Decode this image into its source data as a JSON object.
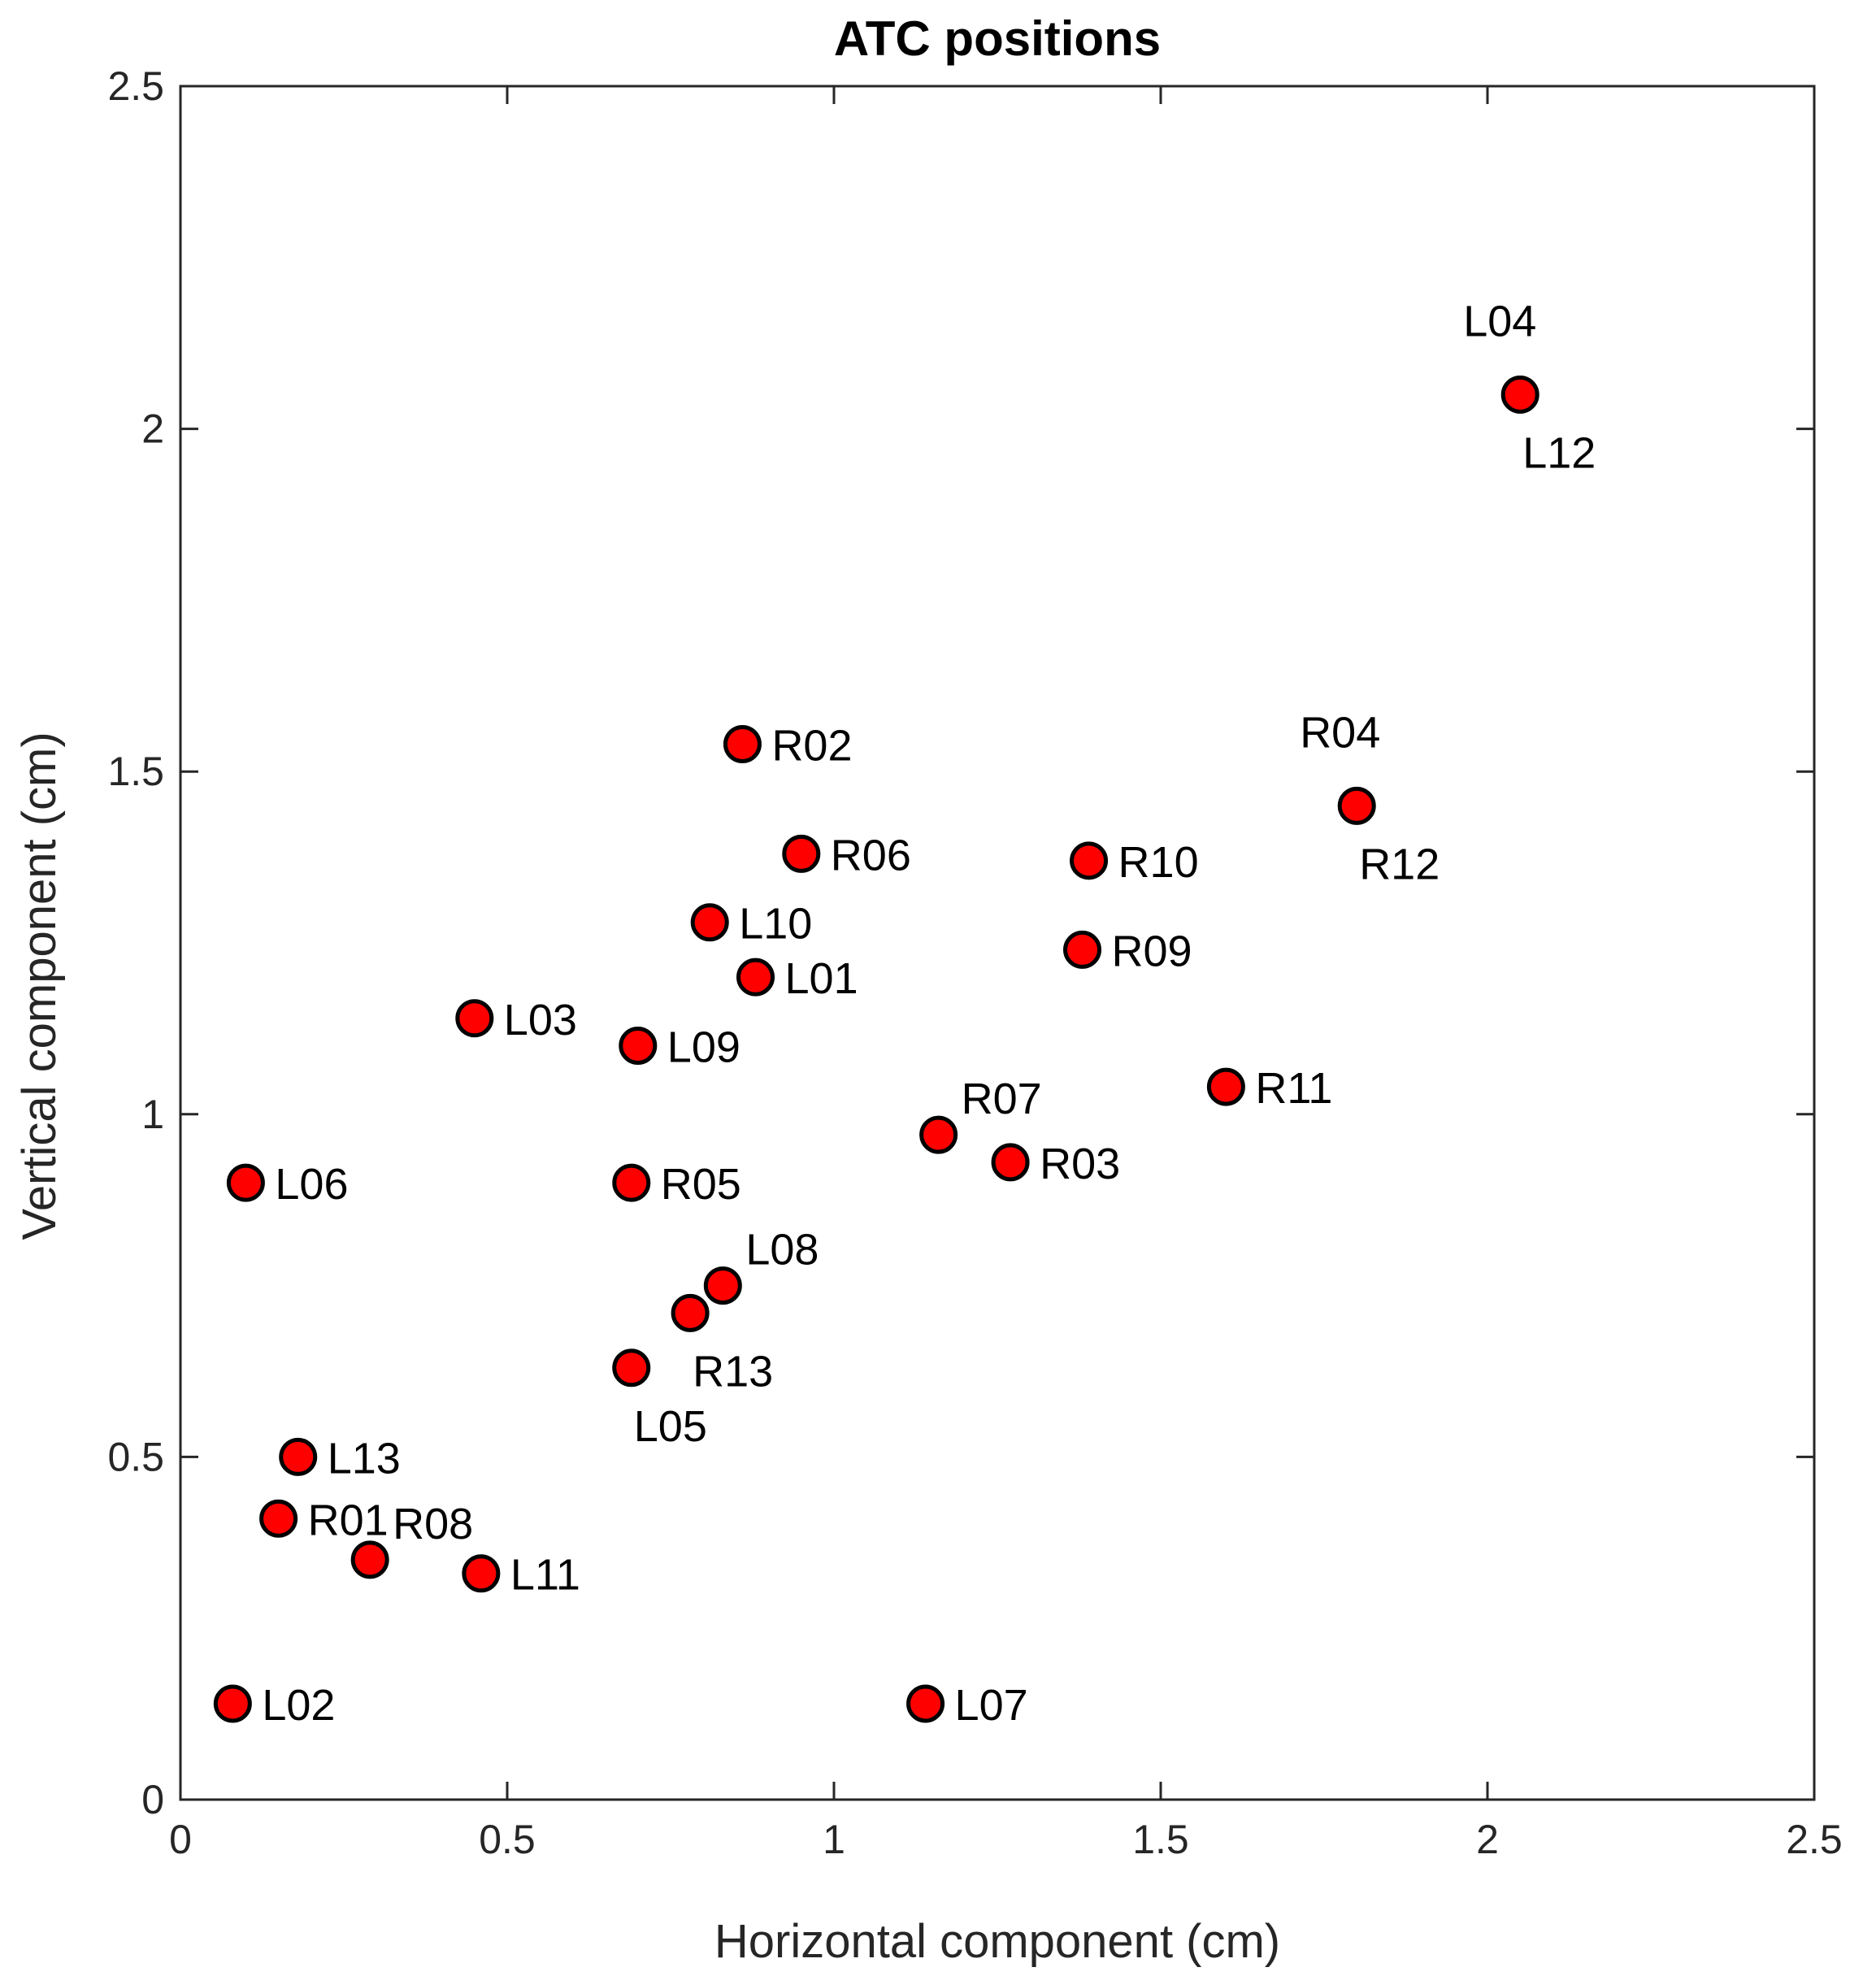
{
  "chart_data": {
    "type": "scatter",
    "title": "ATC positions",
    "xlabel": "Horizontal component (cm)",
    "ylabel": "Vertical component (cm)",
    "xlim": [
      0,
      2.5
    ],
    "ylim": [
      0,
      2.5
    ],
    "xticks": [
      0,
      0.5,
      1,
      1.5,
      2,
      2.5
    ],
    "yticks": [
      0,
      0.5,
      1,
      1.5,
      2,
      2.5
    ],
    "xtick_labels": [
      "0",
      "0.5",
      "1",
      "1.5",
      "2",
      "2.5"
    ],
    "ytick_labels": [
      "0",
      "0.5",
      "1",
      "1.5",
      "2",
      "2.5"
    ],
    "grid": false,
    "legend": "none",
    "marker_color": "#ff0000",
    "marker_edge_color": "#000000",
    "points": [
      {
        "label": "L04",
        "x": 2.05,
        "y": 2.05,
        "label_pos": "above-left"
      },
      {
        "label": "L12",
        "x": 2.05,
        "y": 2.05,
        "label_pos": "below-right"
      },
      {
        "label": "R04",
        "x": 1.8,
        "y": 1.45,
        "label_pos": "above-left"
      },
      {
        "label": "R12",
        "x": 1.8,
        "y": 1.45,
        "label_pos": "below-right"
      },
      {
        "label": "R02",
        "x": 0.86,
        "y": 1.54,
        "label_pos": "right"
      },
      {
        "label": "R06",
        "x": 0.95,
        "y": 1.38,
        "label_pos": "right"
      },
      {
        "label": "R10",
        "x": 1.39,
        "y": 1.37,
        "label_pos": "right"
      },
      {
        "label": "L10",
        "x": 0.81,
        "y": 1.28,
        "label_pos": "right"
      },
      {
        "label": "R09",
        "x": 1.38,
        "y": 1.24,
        "label_pos": "right"
      },
      {
        "label": "L01",
        "x": 0.88,
        "y": 1.2,
        "label_pos": "right"
      },
      {
        "label": "L03",
        "x": 0.45,
        "y": 1.14,
        "label_pos": "right"
      },
      {
        "label": "L09",
        "x": 0.7,
        "y": 1.1,
        "label_pos": "right"
      },
      {
        "label": "R11",
        "x": 1.6,
        "y": 1.04,
        "label_pos": "right"
      },
      {
        "label": "R07",
        "x": 1.16,
        "y": 0.97,
        "label_pos": "above-right"
      },
      {
        "label": "R03",
        "x": 1.27,
        "y": 0.93,
        "label_pos": "right"
      },
      {
        "label": "L06",
        "x": 0.1,
        "y": 0.9,
        "label_pos": "right"
      },
      {
        "label": "R05",
        "x": 0.69,
        "y": 0.9,
        "label_pos": "right"
      },
      {
        "label": "L08",
        "x": 0.83,
        "y": 0.75,
        "label_pos": "above-right"
      },
      {
        "label": "R13",
        "x": 0.78,
        "y": 0.71,
        "label_pos": "below-right"
      },
      {
        "label": "L05",
        "x": 0.69,
        "y": 0.63,
        "label_pos": "below-right"
      },
      {
        "label": "L13",
        "x": 0.18,
        "y": 0.5,
        "label_pos": "right"
      },
      {
        "label": "R01",
        "x": 0.15,
        "y": 0.41,
        "label_pos": "right"
      },
      {
        "label": "R08",
        "x": 0.29,
        "y": 0.35,
        "label_pos": "above-right"
      },
      {
        "label": "L11",
        "x": 0.46,
        "y": 0.33,
        "label_pos": "right"
      },
      {
        "label": "L02",
        "x": 0.08,
        "y": 0.14,
        "label_pos": "right"
      },
      {
        "label": "L07",
        "x": 1.14,
        "y": 0.14,
        "label_pos": "right"
      }
    ]
  }
}
